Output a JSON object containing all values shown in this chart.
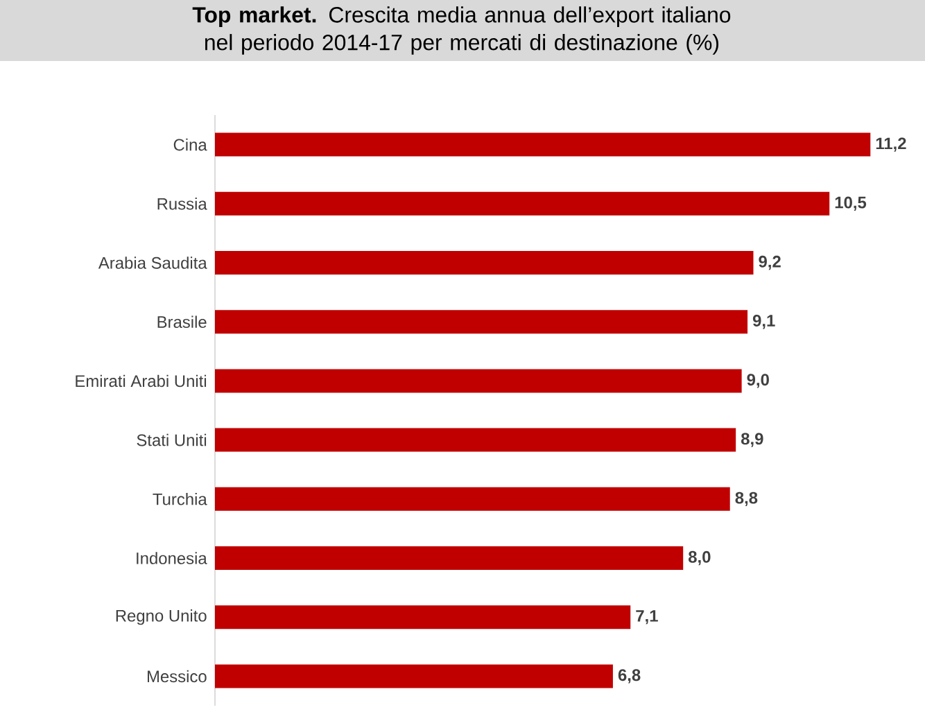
{
  "chart_data": {
    "type": "bar",
    "orientation": "horizontal",
    "title": "**Top market.** Crescita media annua dell’export italiano nel periodo 2014-17 per mercati di destinazione (%)",
    "categories": [
      "Cina",
      "Russia",
      "Arabia Saudita",
      "Brasile",
      "Emirati Arabi Uniti",
      "Stati Uniti",
      "Turchia",
      "Indonesia",
      "Regno Unito",
      "Messico"
    ],
    "values": [
      11.2,
      10.5,
      9.2,
      9.1,
      9.0,
      8.9,
      8.8,
      8.0,
      7.1,
      6.8
    ],
    "value_labels": [
      "11,2",
      "10,5",
      "9,2",
      "9,1",
      "9,0",
      "8,9",
      "8,8",
      "8,0",
      "7,1",
      "6,8"
    ],
    "color": "#c00000"
  }
}
